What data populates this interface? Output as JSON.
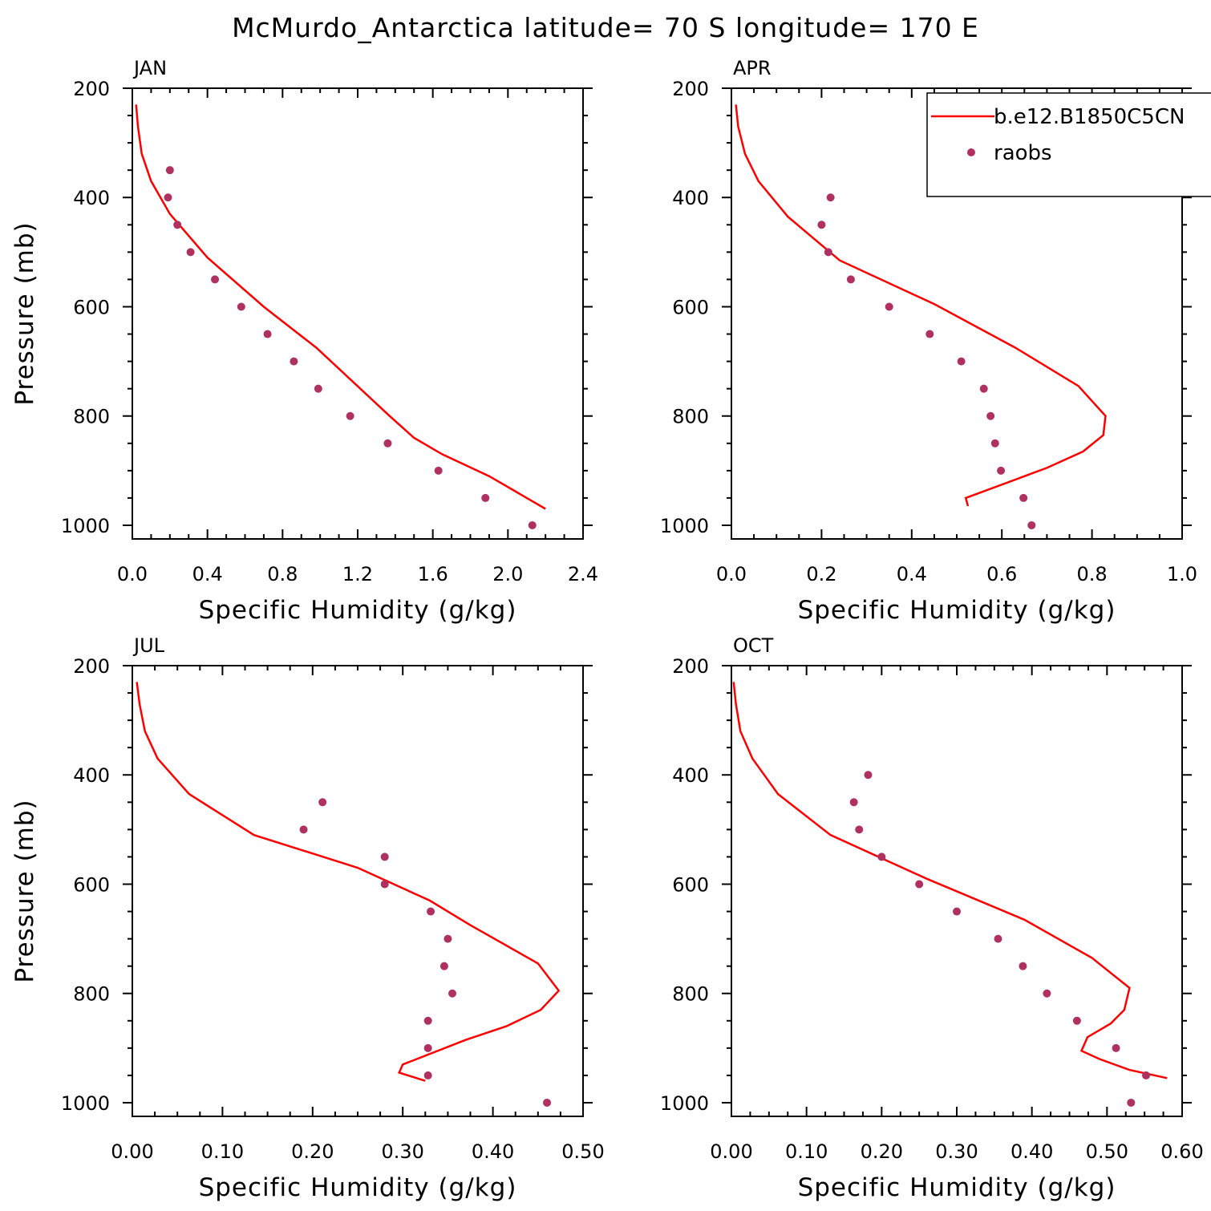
{
  "figure": {
    "title": "McMurdo_Antarctica  latitude= 70 S longitude= 170 E"
  },
  "colors": {
    "model_line": "#ff0000",
    "raobs_marker": "#b03060",
    "axes": "#000000",
    "background": "#ffffff"
  },
  "legend": {
    "placement": "top-right of APR panel",
    "entries": [
      {
        "label": "b.e12.B1850C5CN",
        "style": "line",
        "color": "#ff0000"
      },
      {
        "label": "raobs",
        "style": "marker",
        "color": "#b03060"
      }
    ]
  },
  "chart_data": [
    {
      "type": "line",
      "title": "JAN",
      "xlabel": "Specific Humidity (g/kg)",
      "ylabel": "Pressure (mb)",
      "xlim": [
        0,
        2.4
      ],
      "ylim": [
        1025,
        200
      ],
      "y_inverted": true,
      "xticks": [
        "0.0",
        "0.4",
        "0.8",
        "1.2",
        "1.6",
        "2.0",
        "2.4"
      ],
      "xtick_values": [
        0,
        0.4,
        0.8,
        1.2,
        1.6,
        2.0,
        2.4
      ],
      "yticks": [
        "200",
        "400",
        "600",
        "800",
        "1000"
      ],
      "ytick_values": [
        200,
        400,
        600,
        800,
        1000
      ],
      "series": [
        {
          "name": "b.e12.B1850C5CN",
          "kind": "line",
          "x": [
            0.02,
            0.03,
            0.05,
            0.1,
            0.2,
            0.4,
            0.7,
            0.98,
            1.37,
            1.5,
            1.65,
            1.9,
            2.1,
            2.2
          ],
          "y": [
            230,
            270,
            320,
            370,
            430,
            510,
            600,
            675,
            800,
            840,
            870,
            910,
            950,
            970
          ]
        },
        {
          "name": "raobs",
          "kind": "scatter",
          "x": [
            0.2,
            0.19,
            0.24,
            0.31,
            0.44,
            0.58,
            0.72,
            0.86,
            0.99,
            1.16,
            1.36,
            1.63,
            1.88,
            2.13
          ],
          "y": [
            350,
            400,
            450,
            500,
            550,
            600,
            650,
            700,
            750,
            800,
            850,
            900,
            950,
            1000
          ]
        }
      ]
    },
    {
      "type": "line",
      "title": "APR",
      "xlabel": "Specific Humidity (g/kg)",
      "ylabel": "",
      "xlim": [
        0,
        1.0
      ],
      "ylim": [
        1025,
        200
      ],
      "y_inverted": true,
      "xticks": [
        "0.0",
        "0.2",
        "0.4",
        "0.6",
        "0.8",
        "1.0"
      ],
      "xtick_values": [
        0,
        0.2,
        0.4,
        0.6,
        0.8,
        1.0
      ],
      "yticks": [
        "200",
        "400",
        "600",
        "800",
        "1000"
      ],
      "ytick_values": [
        200,
        400,
        600,
        800,
        1000
      ],
      "series": [
        {
          "name": "b.e12.B1850C5CN",
          "kind": "line",
          "x": [
            0.01,
            0.015,
            0.03,
            0.06,
            0.125,
            0.24,
            0.45,
            0.63,
            0.77,
            0.83,
            0.825,
            0.78,
            0.7,
            0.52,
            0.525
          ],
          "y": [
            230,
            270,
            320,
            370,
            435,
            515,
            595,
            675,
            745,
            800,
            835,
            865,
            895,
            950,
            965
          ]
        },
        {
          "name": "raobs",
          "kind": "scatter",
          "x": [
            0.22,
            0.2,
            0.215,
            0.265,
            0.35,
            0.44,
            0.51,
            0.56,
            0.575,
            0.585,
            0.598,
            0.648,
            0.666
          ],
          "y": [
            400,
            450,
            500,
            550,
            600,
            650,
            700,
            750,
            800,
            850,
            900,
            950,
            1000
          ]
        }
      ]
    },
    {
      "type": "line",
      "title": "JUL",
      "xlabel": "Specific Humidity (g/kg)",
      "ylabel": "Pressure (mb)",
      "xlim": [
        0,
        0.5
      ],
      "ylim": [
        1025,
        200
      ],
      "y_inverted": true,
      "xticks": [
        "0.00",
        "0.10",
        "0.20",
        "0.30",
        "0.40",
        "0.50"
      ],
      "xtick_values": [
        0,
        0.1,
        0.2,
        0.3,
        0.4,
        0.5
      ],
      "yticks": [
        "200",
        "400",
        "600",
        "800",
        "1000"
      ],
      "ytick_values": [
        200,
        400,
        600,
        800,
        1000
      ],
      "series": [
        {
          "name": "b.e12.B1850C5CN",
          "kind": "line",
          "x": [
            0.005,
            0.008,
            0.014,
            0.028,
            0.063,
            0.135,
            0.25,
            0.33,
            0.375,
            0.45,
            0.473,
            0.453,
            0.415,
            0.37,
            0.3,
            0.296,
            0.325
          ],
          "y": [
            230,
            270,
            320,
            370,
            435,
            510,
            570,
            630,
            675,
            745,
            795,
            830,
            860,
            885,
            930,
            945,
            960
          ]
        },
        {
          "name": "raobs",
          "kind": "scatter",
          "x": [
            0.211,
            0.19,
            0.28,
            0.28,
            0.331,
            0.35,
            0.346,
            0.355,
            0.328,
            0.328,
            0.328,
            0.46
          ],
          "y": [
            450,
            500,
            550,
            600,
            650,
            700,
            750,
            800,
            850,
            900,
            950,
            1000
          ]
        }
      ]
    },
    {
      "type": "line",
      "title": "OCT",
      "xlabel": "Specific Humidity (g/kg)",
      "ylabel": "",
      "xlim": [
        0,
        0.6
      ],
      "ylim": [
        1025,
        200
      ],
      "y_inverted": true,
      "xticks": [
        "0.00",
        "0.10",
        "0.20",
        "0.30",
        "0.40",
        "0.50",
        "0.60"
      ],
      "xtick_values": [
        0,
        0.1,
        0.2,
        0.3,
        0.4,
        0.5,
        0.6
      ],
      "yticks": [
        "200",
        "400",
        "600",
        "800",
        "1000"
      ],
      "ytick_values": [
        200,
        400,
        600,
        800,
        1000
      ],
      "series": [
        {
          "name": "b.e12.B1850C5CN",
          "kind": "line",
          "x": [
            0.003,
            0.006,
            0.012,
            0.028,
            0.062,
            0.132,
            0.26,
            0.39,
            0.48,
            0.53,
            0.523,
            0.505,
            0.474,
            0.466,
            0.49,
            0.53,
            0.58
          ],
          "y": [
            230,
            270,
            320,
            370,
            435,
            510,
            590,
            665,
            735,
            790,
            830,
            855,
            880,
            905,
            920,
            940,
            955
          ]
        },
        {
          "name": "raobs",
          "kind": "scatter",
          "x": [
            0.182,
            0.163,
            0.17,
            0.2,
            0.25,
            0.3,
            0.355,
            0.388,
            0.42,
            0.46,
            0.512,
            0.552,
            0.532
          ],
          "y": [
            400,
            450,
            500,
            550,
            600,
            650,
            700,
            750,
            800,
            850,
            900,
            950,
            1000
          ]
        }
      ]
    }
  ]
}
